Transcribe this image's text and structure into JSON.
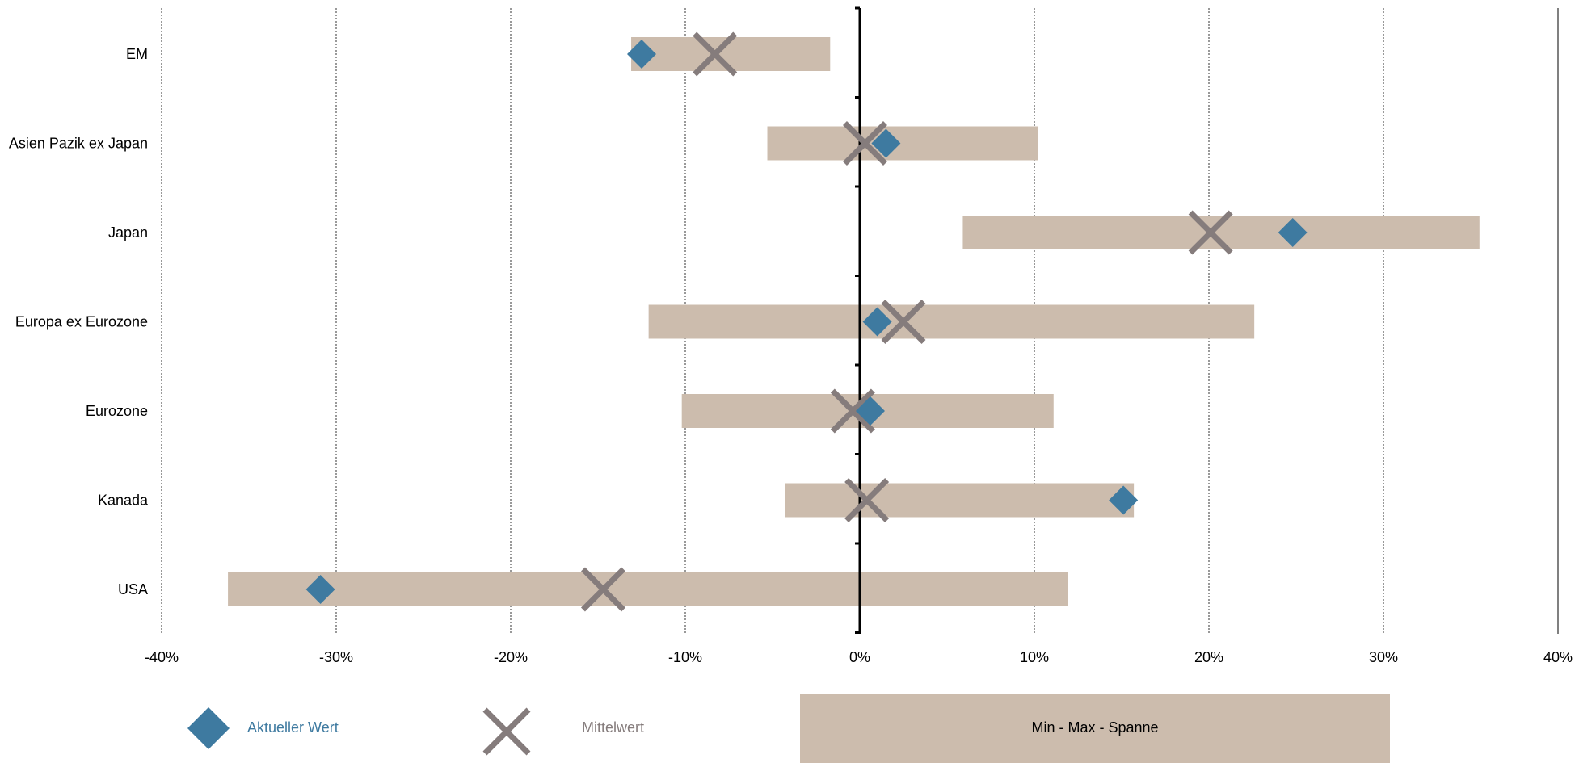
{
  "chart_data": {
    "type": "range-dot",
    "categories": [
      "EM",
      "Asien Pazik ex Japan",
      "Japan",
      "Europa ex Eurozone",
      "Eurozone",
      "Kanada",
      "USA"
    ],
    "series": [
      {
        "name": "Aktueller Wert",
        "values": [
          -12.5,
          1.5,
          24.8,
          1.0,
          0.6,
          15.1,
          -30.9
        ]
      },
      {
        "name": "Mittelwert",
        "values": [
          -8.3,
          0.3,
          20.1,
          2.5,
          -0.4,
          0.4,
          -14.7
        ]
      },
      {
        "name": "Min - Max - Spanne",
        "min": [
          -13.1,
          -5.3,
          5.9,
          -12.1,
          -10.2,
          -4.3,
          -36.2
        ],
        "max": [
          -1.7,
          10.2,
          35.5,
          22.6,
          11.1,
          15.7,
          11.9
        ]
      }
    ],
    "xlim": [
      -40,
      40
    ],
    "xticks": [
      -40,
      -30,
      -20,
      -10,
      0,
      10,
      20,
      30,
      40
    ],
    "xtick_labels": [
      "-40%",
      "-30%",
      "-20%",
      "-10%",
      "0%",
      "10%",
      "20%",
      "30%",
      "40%"
    ],
    "grid": "vertical dotted",
    "legend_position": "bottom",
    "colors": {
      "current": "#3e7aa0",
      "mean": "#857c7c",
      "range": "#ccbcad",
      "axis": "#000000"
    }
  },
  "legend": {
    "current_label": "Aktueller Wert",
    "mean_label": "Mittelwert",
    "range_label": "Min - Max - Spanne"
  }
}
